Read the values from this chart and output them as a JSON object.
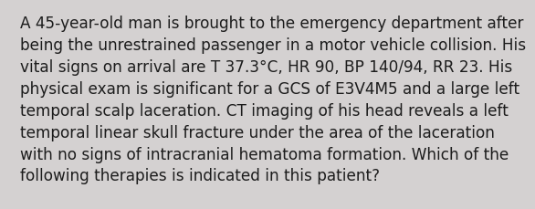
{
  "lines": [
    "A 45-year-old man is brought to the emergency department after",
    "being the unrestrained passenger in a motor vehicle collision. His",
    "vital signs on arrival are T 37.3°C, HR 90, BP 140/94, RR 23. His",
    "physical exam is significant for a GCS of E3V4M5 and a large left",
    "temporal scalp laceration. CT imaging of his head reveals a left",
    "temporal linear skull fracture under the area of the laceration",
    "with no signs of intracranial hematoma formation. Which of the",
    "following therapies is indicated in this patient?"
  ],
  "background_color": "#d4d1d1",
  "text_color": "#1c1c1c",
  "font_size": 12.2,
  "font_family": "DejaVu Sans",
  "linespacing": 1.42
}
